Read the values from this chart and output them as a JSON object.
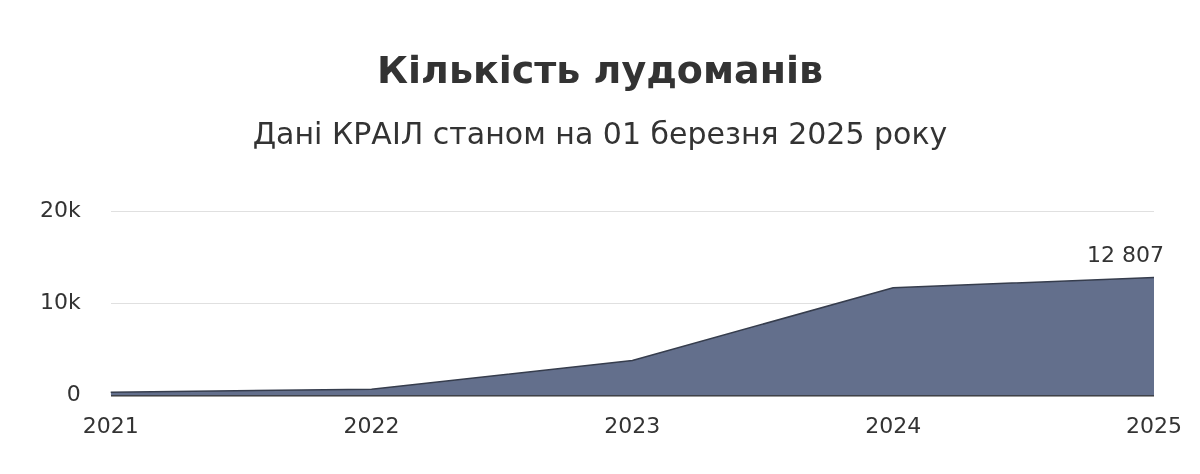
{
  "chart_data": {
    "type": "area",
    "title": "Кількість лудоманів",
    "subtitle": "Дані КРАІЛ станом на 01 березня 2025 року",
    "categories": [
      "2021",
      "2022",
      "2023",
      "2024",
      "2025"
    ],
    "series": [
      {
        "color": "#636f8c",
        "values": [
          350,
          700,
          3800,
          11700,
          12807
        ],
        "value_labels": [
          null,
          null,
          null,
          null,
          "12 807"
        ]
      }
    ],
    "ylim": [
      0,
      20000
    ],
    "yticks": [
      0,
      {
        "value": 10000,
        "label": "10k"
      },
      {
        "value": 20000,
        "label": "20k"
      }
    ],
    "grid": "y",
    "legend": false,
    "marker": "none"
  }
}
